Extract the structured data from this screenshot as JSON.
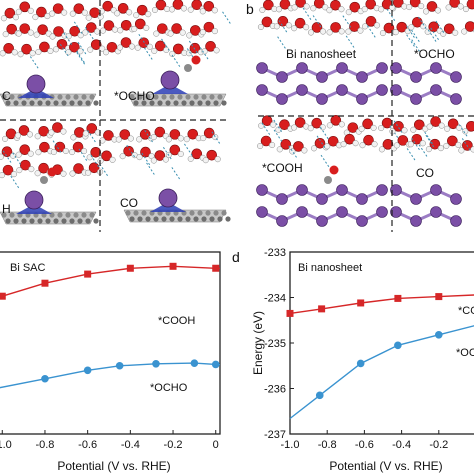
{
  "panels": {
    "a": {
      "letter": "",
      "labels": [
        "C",
        "*OCHO",
        "H",
        "CO"
      ]
    },
    "b": {
      "letter": "b",
      "labels": [
        "Bi nanosheet",
        "*OCHO",
        "*COOH",
        "CO"
      ]
    }
  },
  "colors": {
    "red_series": "#d62728",
    "blue_series": "#3a93d0",
    "oxygen": "#d81e1e",
    "hydrogen": "#f2f2f2",
    "bismuth": "#7b4fa6",
    "carbon": "#8a8a8a",
    "nitrogen": "#2b3db5"
  },
  "chart_data": [
    {
      "type": "line",
      "panel_letter": "",
      "title": "Bi SAC",
      "xlabel": "Potential (V vs. RHE)",
      "ylabel": "",
      "xticks": [
        "-1.0",
        "-0.8",
        "-0.6",
        "-0.4",
        "-0.2",
        "0"
      ],
      "xlim": [
        -1.02,
        0.02
      ],
      "ylim": [
        -2.6,
        0.2
      ],
      "series": [
        {
          "name": "*COOH",
          "color": "#d62728",
          "marker": "square",
          "x": [
            -1.0,
            -0.8,
            -0.6,
            -0.4,
            -0.2,
            0.0
          ],
          "y": [
            -0.48,
            -0.28,
            -0.14,
            -0.05,
            -0.02,
            -0.05
          ]
        },
        {
          "name": "*OCHO",
          "color": "#3a93d0",
          "marker": "circle",
          "x": [
            -0.8,
            -0.6,
            -0.45,
            -0.28,
            -0.1,
            0.0
          ],
          "y": [
            -1.75,
            -1.62,
            -1.55,
            -1.52,
            -1.51,
            -1.53
          ]
        }
      ]
    },
    {
      "type": "line",
      "panel_letter": "d",
      "title": "Bi nanosheet",
      "xlabel": "Potential (V vs. RHE)",
      "ylabel": "Energy (eV)",
      "xticks": [
        "-1.0",
        "-0.8",
        "-0.6",
        "-0.4",
        "-0.2"
      ],
      "yticks": [
        "-233",
        "-234",
        "-235",
        "-236",
        "-237"
      ],
      "xlim": [
        -1.0,
        0.0
      ],
      "ylim": [
        -237,
        -233
      ],
      "series": [
        {
          "name": "*COO",
          "color": "#d62728",
          "marker": "square",
          "x": [
            -1.0,
            -0.83,
            -0.62,
            -0.42,
            -0.2
          ],
          "y": [
            -234.35,
            -234.25,
            -234.12,
            -234.02,
            -233.98
          ]
        },
        {
          "name": "*OC",
          "color": "#3a93d0",
          "marker": "circle",
          "x": [
            -0.84,
            -0.62,
            -0.42,
            -0.2
          ],
          "y": [
            -236.15,
            -235.45,
            -235.05,
            -234.82
          ]
        }
      ]
    }
  ]
}
